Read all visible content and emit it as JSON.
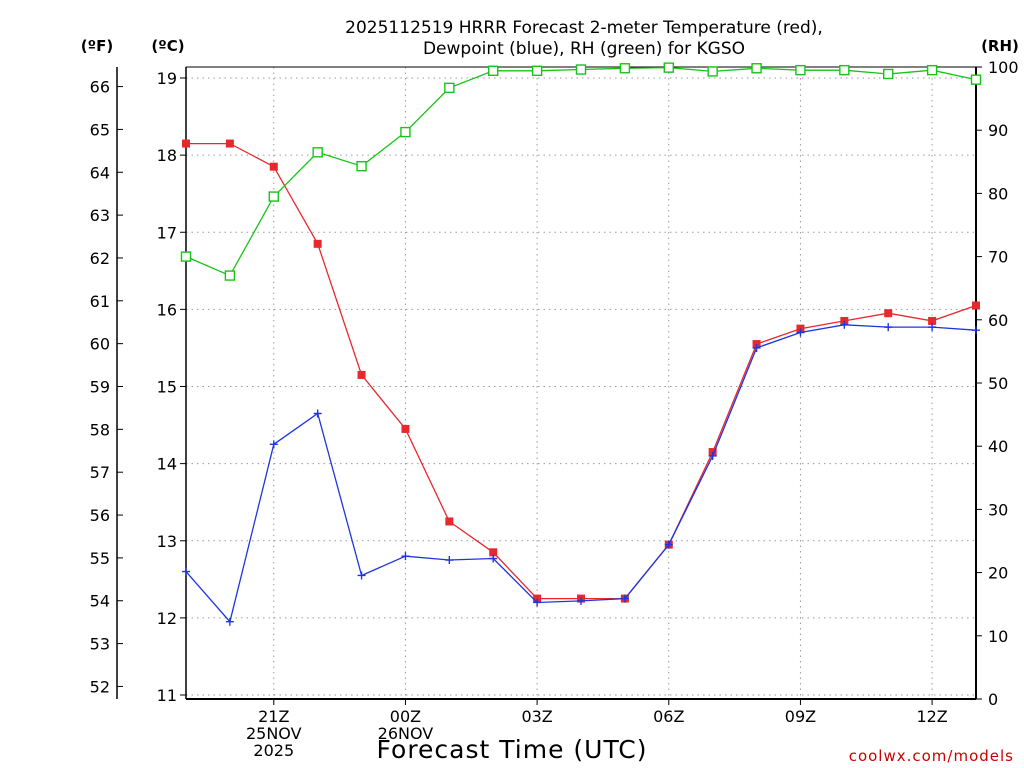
{
  "chart_data": {
    "type": "line",
    "title": "2025112519 HRRR Forecast 2-meter Temperature (red),",
    "subtitle": "Dewpoint (blue), RH (green) for KGSO",
    "xlabel": "Forecast Time (UTC)",
    "credit": "coolwx.com/models",
    "units": {
      "fahrenheit": "(ºF)",
      "celsius": "(ºC)",
      "rh": "(RH)"
    },
    "x_range": [
      19,
      37
    ],
    "celsius_range": [
      11,
      19.15
    ],
    "rh_range": [
      0,
      100
    ],
    "x_ticks": [
      {
        "x": 21,
        "lines": [
          "21Z",
          "25NOV",
          "2025"
        ]
      },
      {
        "x": 24,
        "lines": [
          "00Z",
          "26NOV"
        ]
      },
      {
        "x": 27,
        "lines": [
          "03Z"
        ]
      },
      {
        "x": 30,
        "lines": [
          "06Z"
        ]
      },
      {
        "x": 33,
        "lines": [
          "09Z"
        ]
      },
      {
        "x": 36,
        "lines": [
          "12Z"
        ]
      }
    ],
    "celsius_ticks": [
      "11",
      "12",
      "13",
      "14",
      "15",
      "16",
      "17",
      "18",
      "19"
    ],
    "fahrenheit_ticks": [
      "52",
      "53",
      "54",
      "55",
      "56",
      "57",
      "58",
      "59",
      "60",
      "61",
      "62",
      "63",
      "64",
      "65",
      "66"
    ],
    "rh_ticks": [
      "0",
      "10",
      "20",
      "30",
      "40",
      "50",
      "60",
      "70",
      "80",
      "90",
      "100"
    ],
    "x": [
      19,
      20,
      21,
      22,
      23,
      24,
      25,
      26,
      27,
      28,
      29,
      30,
      31,
      32,
      33,
      34,
      35,
      36,
      37
    ],
    "series": [
      {
        "name": "Temperature",
        "axis": "celsius",
        "color": "#e8282d",
        "marker": "filled-square",
        "values": [
          18.15,
          18.15,
          17.85,
          16.85,
          15.15,
          14.45,
          13.25,
          12.85,
          12.25,
          12.25,
          12.25,
          12.95,
          14.15,
          15.55,
          15.75,
          15.85,
          15.95,
          15.85,
          16.05
        ]
      },
      {
        "name": "Dewpoint",
        "axis": "celsius",
        "color": "#1e36e0",
        "marker": "plus",
        "values": [
          12.6,
          11.95,
          14.25,
          14.65,
          12.55,
          12.8,
          12.75,
          12.77,
          12.2,
          12.22,
          12.25,
          12.95,
          14.1,
          15.5,
          15.7,
          15.8,
          15.77,
          15.77,
          15.73
        ]
      },
      {
        "name": "RH",
        "axis": "rh",
        "color": "#16c416",
        "marker": "open-square",
        "values": [
          70,
          67,
          79.5,
          86.5,
          84.3,
          89.7,
          96.7,
          99.4,
          99.4,
          99.6,
          99.8,
          99.9,
          99.3,
          99.8,
          99.5,
          99.5,
          98.9,
          99.5,
          98
        ]
      }
    ]
  }
}
